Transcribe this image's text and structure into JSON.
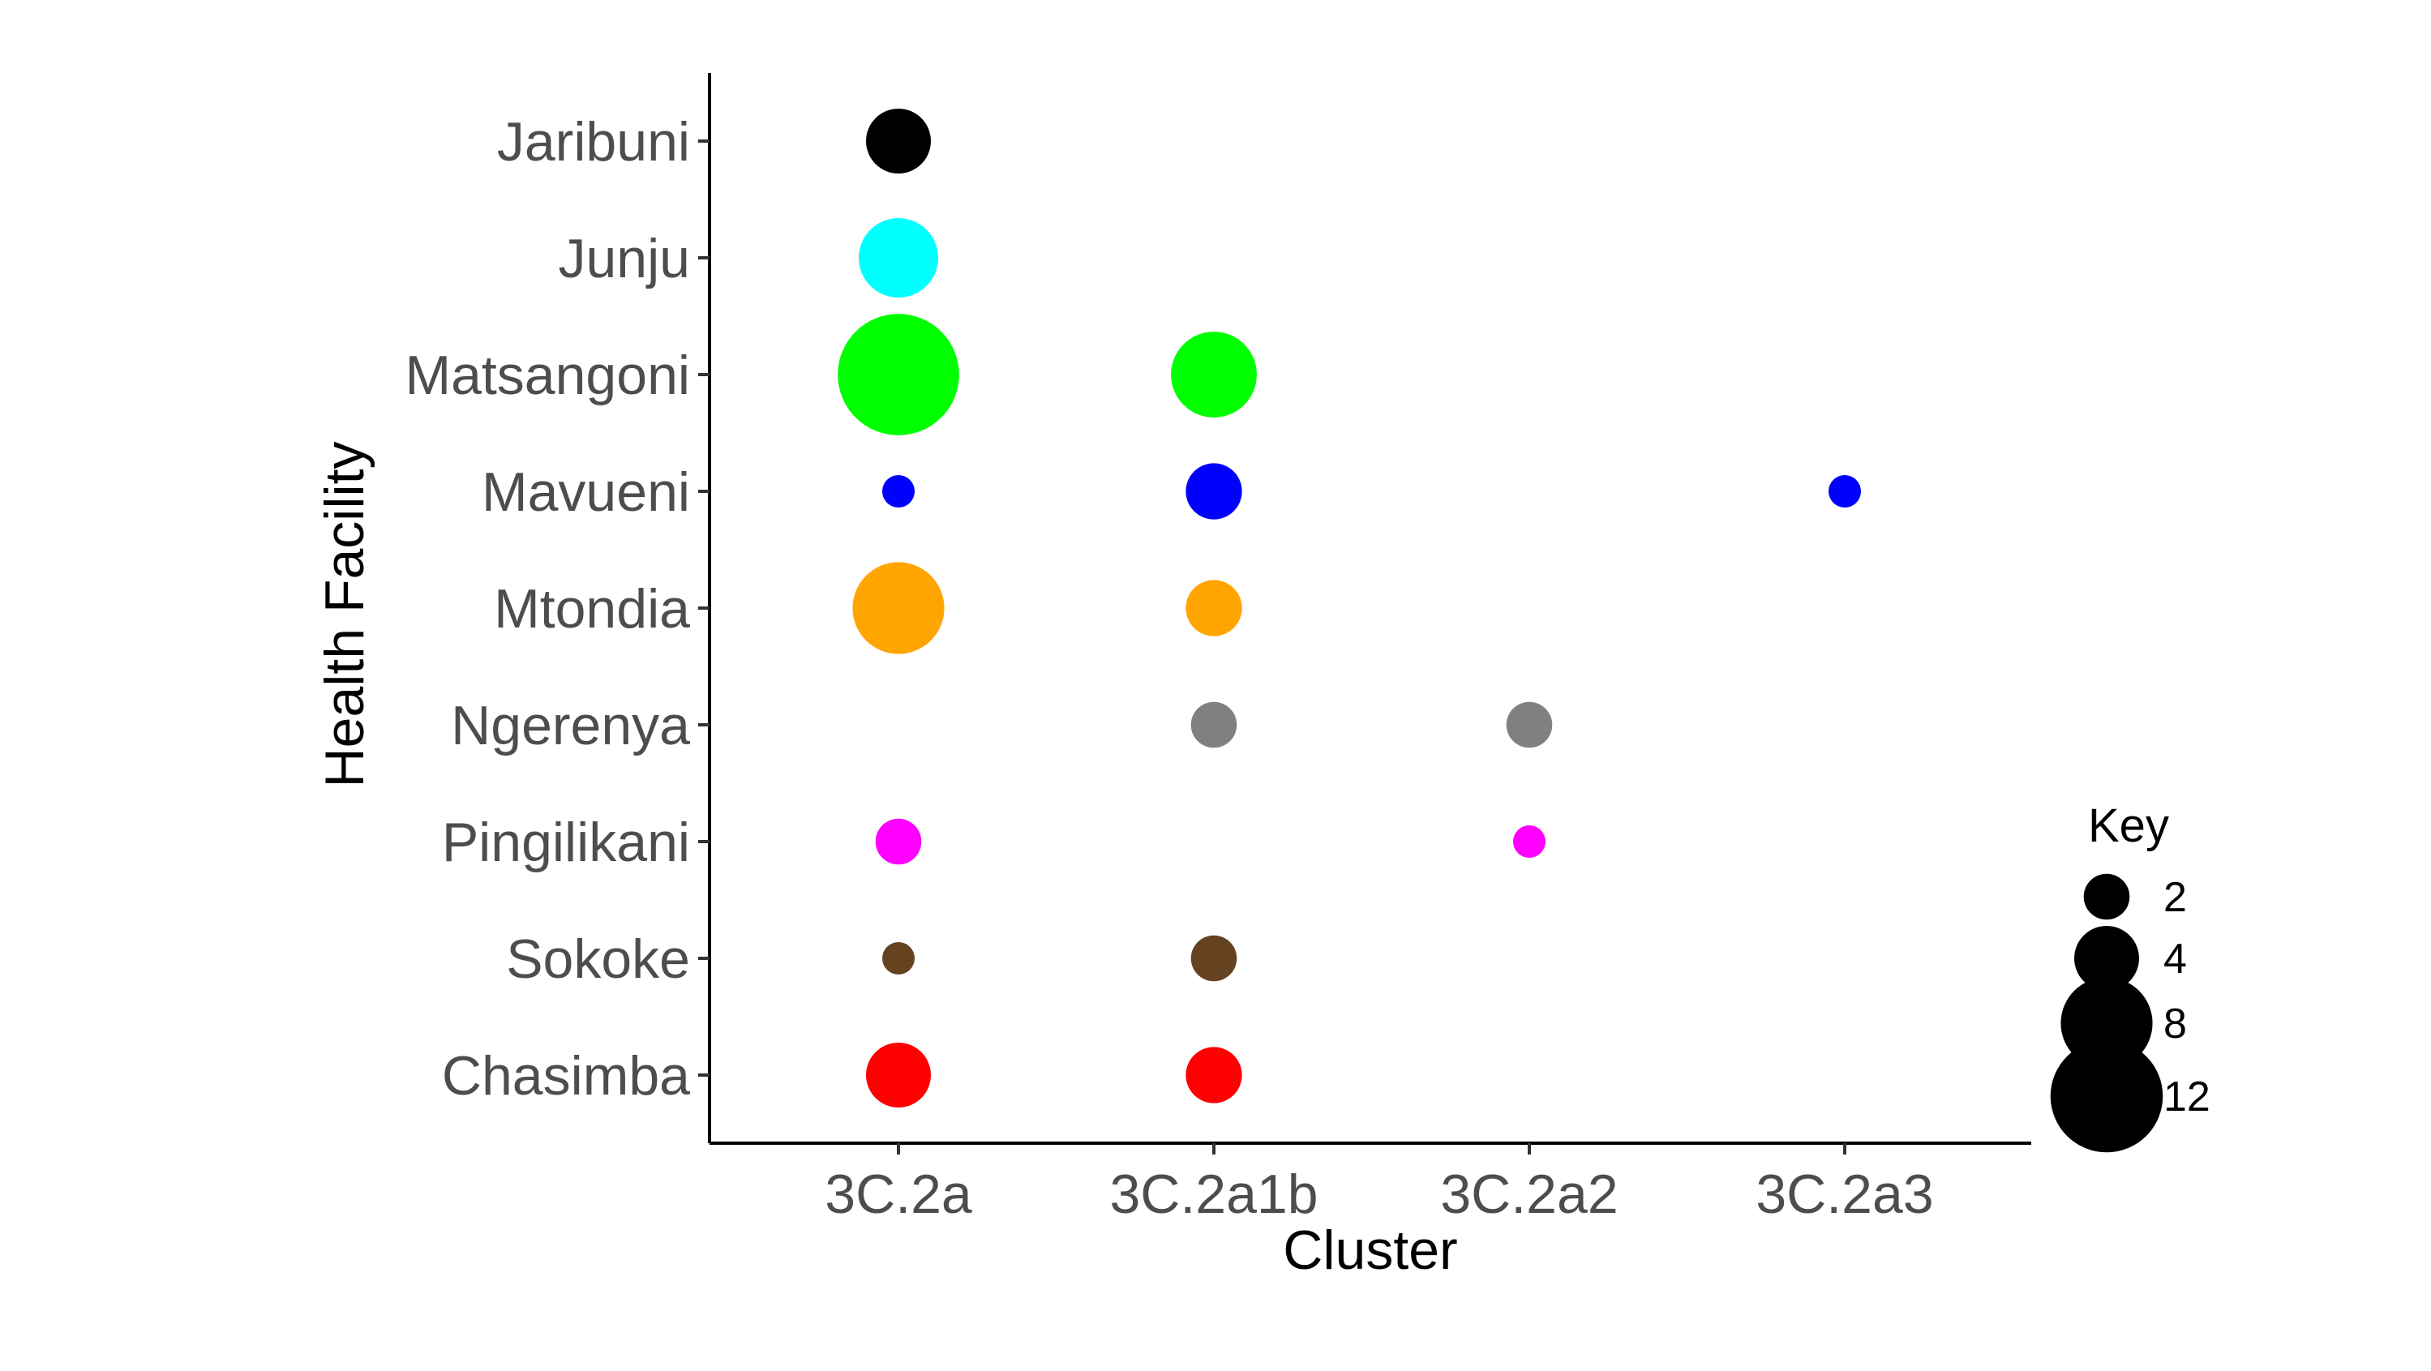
{
  "chart_data": {
    "type": "scatter",
    "xlabel": "Cluster",
    "ylabel": "Health Facility",
    "x_categories": [
      "3C.2a",
      "3C.2a1b",
      "3C.2a2",
      "3C.2a3"
    ],
    "y_categories": [
      "Jaribuni",
      "Junju",
      "Matsangoni",
      "Mavueni",
      "Mtondia",
      "Ngerenya",
      "Pingilikani",
      "Sokoke",
      "Chasimba"
    ],
    "colors": {
      "Jaribuni": "#000000",
      "Junju": "#00ffff",
      "Matsangoni": "#00ff00",
      "Mavueni": "#0000ff",
      "Mtondia": "#ffa500",
      "Ngerenya": "#808080",
      "Pingilikani": "#ff00ff",
      "Sokoke": "#654321",
      "Chasimba": "#ff0000"
    },
    "points": [
      {
        "facility": "Jaribuni",
        "cluster": "3C.2a",
        "count": 4
      },
      {
        "facility": "Junju",
        "cluster": "3C.2a",
        "count": 6
      },
      {
        "facility": "Matsangoni",
        "cluster": "3C.2a",
        "count": 14
      },
      {
        "facility": "Matsangoni",
        "cluster": "3C.2a1b",
        "count": 7
      },
      {
        "facility": "Mavueni",
        "cluster": "3C.2a",
        "count": 1
      },
      {
        "facility": "Mavueni",
        "cluster": "3C.2a1b",
        "count": 3
      },
      {
        "facility": "Mavueni",
        "cluster": "3C.2a3",
        "count": 1
      },
      {
        "facility": "Mtondia",
        "cluster": "3C.2a",
        "count": 8
      },
      {
        "facility": "Mtondia",
        "cluster": "3C.2a1b",
        "count": 3
      },
      {
        "facility": "Ngerenya",
        "cluster": "3C.2a1b",
        "count": 2
      },
      {
        "facility": "Ngerenya",
        "cluster": "3C.2a2",
        "count": 2
      },
      {
        "facility": "Pingilikani",
        "cluster": "3C.2a",
        "count": 2
      },
      {
        "facility": "Pingilikani",
        "cluster": "3C.2a2",
        "count": 1
      },
      {
        "facility": "Sokoke",
        "cluster": "3C.2a",
        "count": 1
      },
      {
        "facility": "Sokoke",
        "cluster": "3C.2a1b",
        "count": 2
      },
      {
        "facility": "Chasimba",
        "cluster": "3C.2a",
        "count": 4
      },
      {
        "facility": "Chasimba",
        "cluster": "3C.2a1b",
        "count": 3
      }
    ],
    "legend": {
      "title": "Key",
      "placement": "bottom-right",
      "color": "#000000",
      "entries": [
        {
          "label": "2",
          "count": 2
        },
        {
          "label": "4",
          "count": 4
        },
        {
          "label": "8",
          "count": 8
        },
        {
          "label": "12",
          "count": 12
        }
      ]
    },
    "grid": false
  }
}
